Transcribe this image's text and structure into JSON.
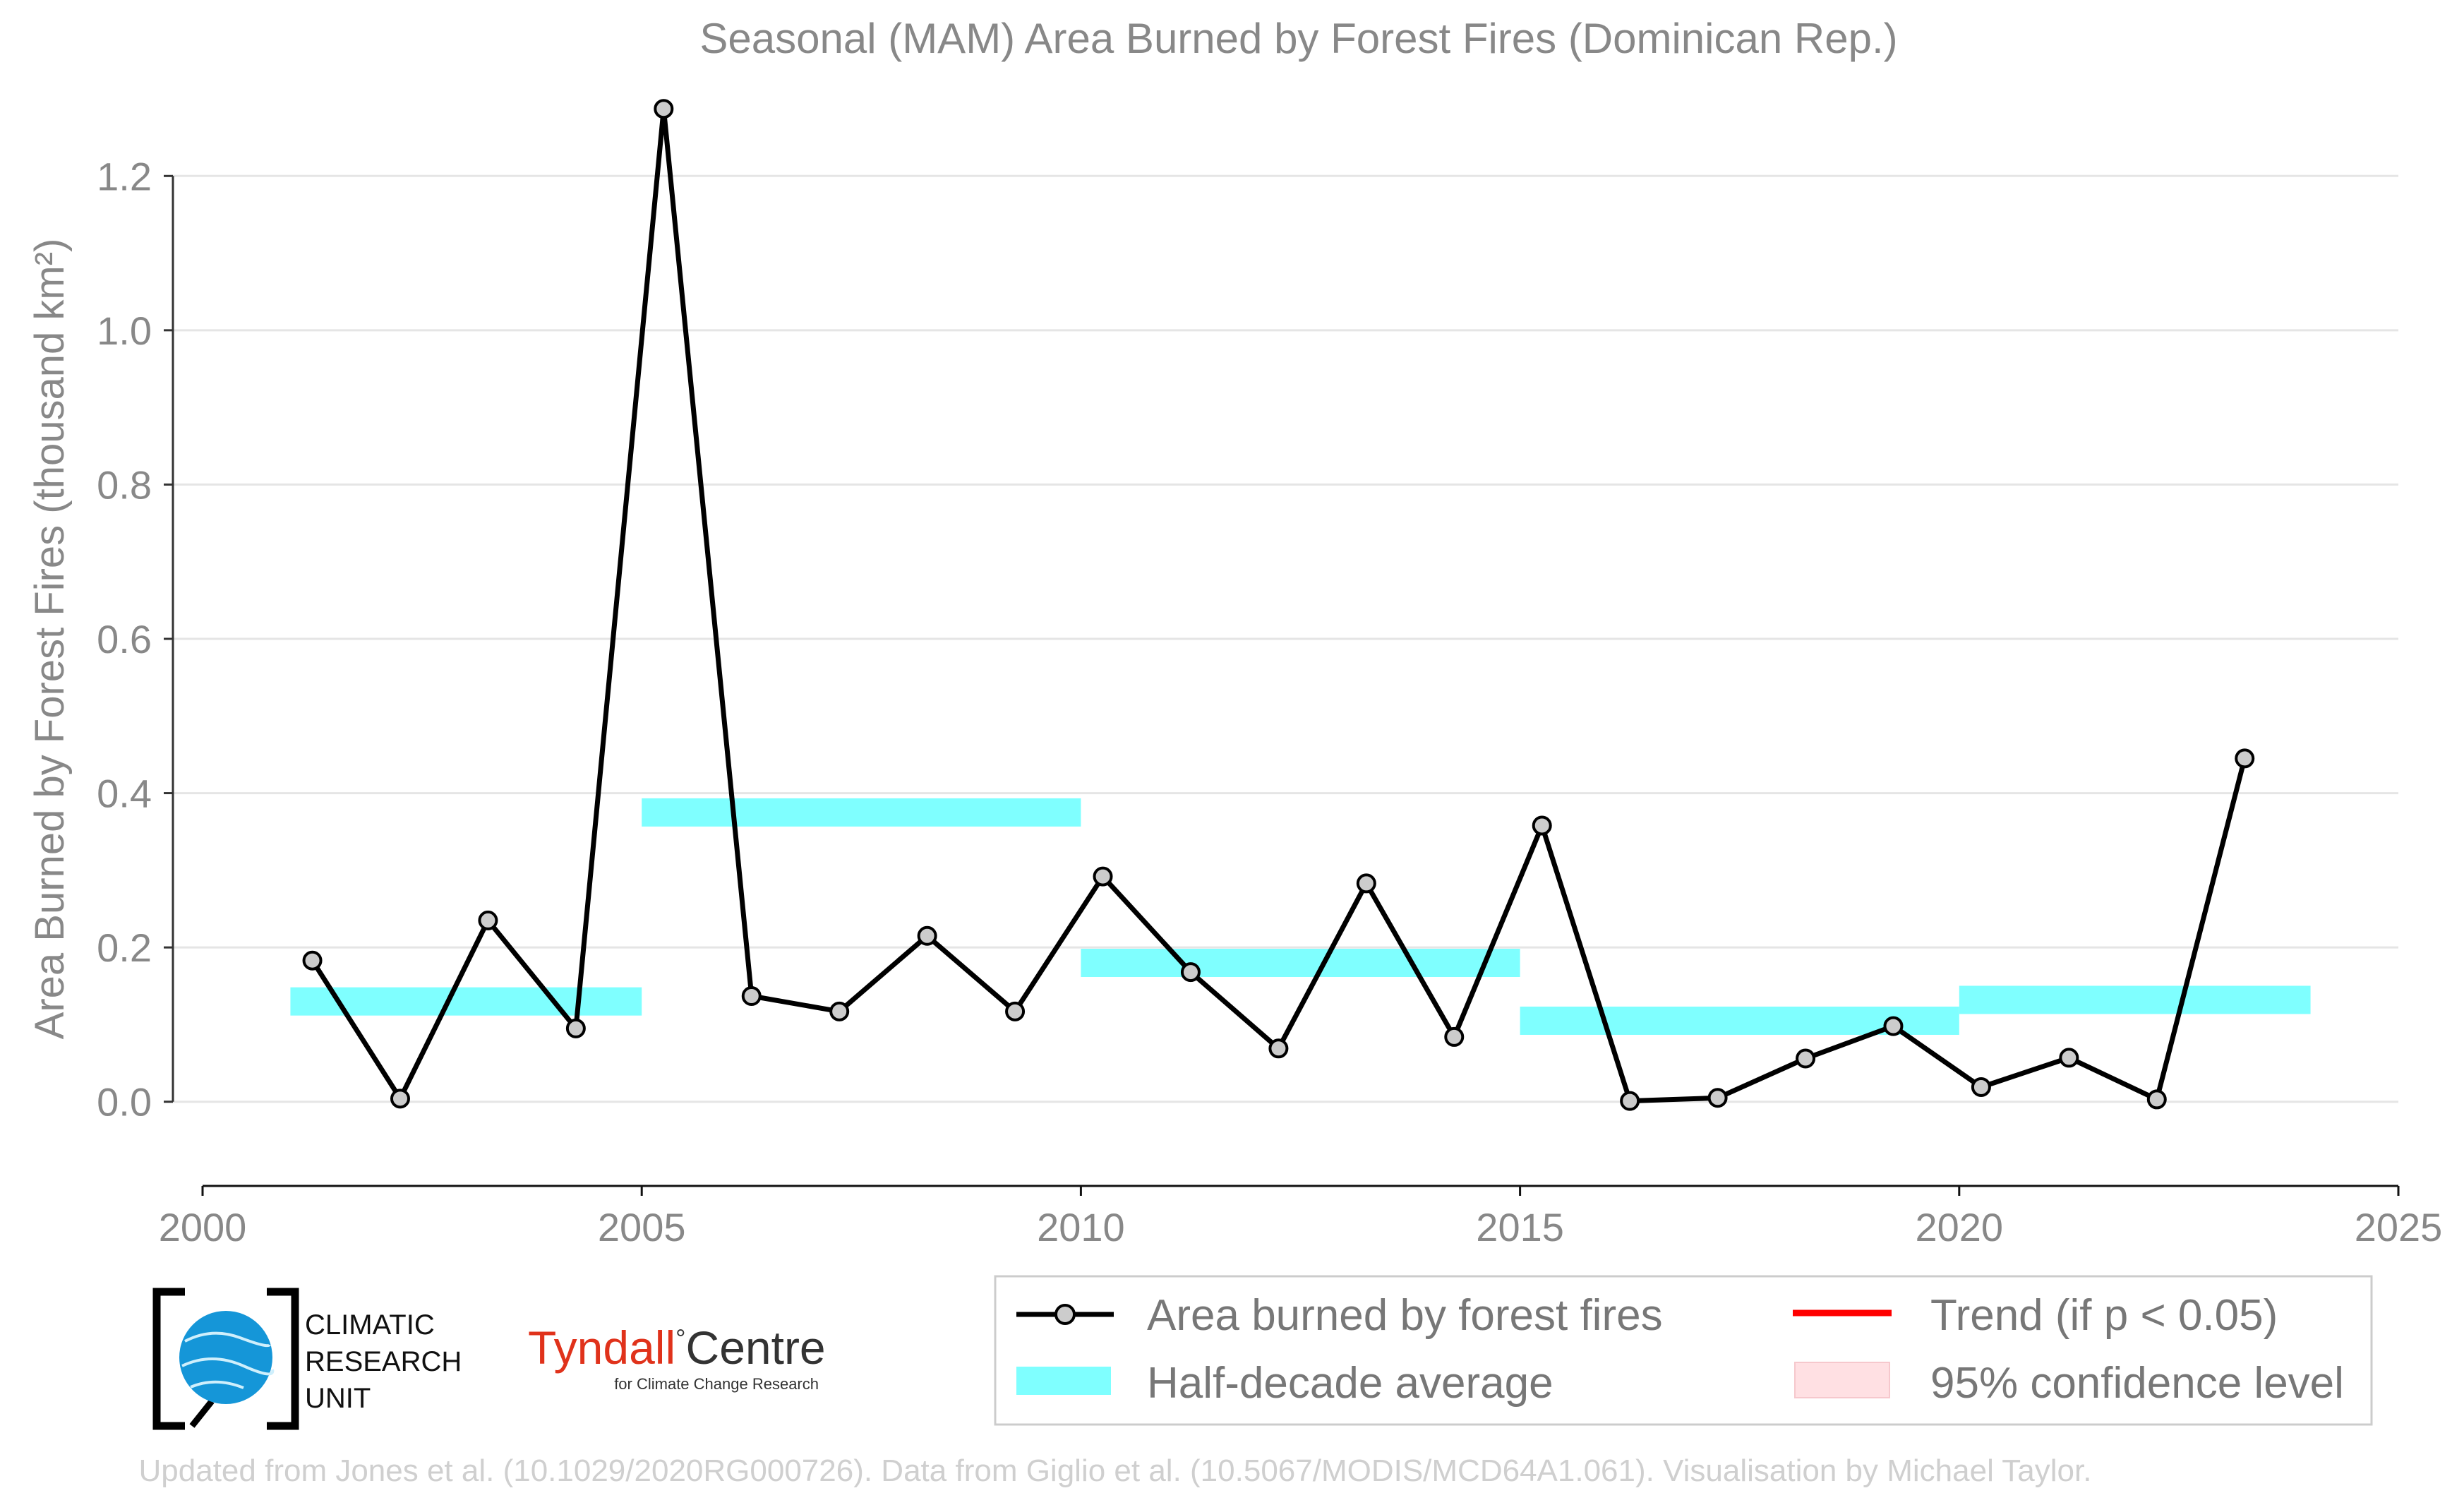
{
  "chart_data": {
    "type": "line",
    "title": "Seasonal (MAM) Area Burned by Forest Fires (Dominican Rep.)",
    "xlabel": "",
    "ylabel": "Area Burned by Forest Fires (thousand km²)",
    "xlim": [
      2000,
      2025
    ],
    "ylim": [
      -0.1,
      1.3
    ],
    "x_ticks": [
      "2000",
      "2005",
      "2010",
      "2015",
      "2020",
      "2025"
    ],
    "y_ticks": [
      "0.0",
      "0.2",
      "0.4",
      "0.6",
      "0.8",
      "1.0",
      "1.2"
    ],
    "grid": "horizontal",
    "series": [
      {
        "name": "Area burned by forest fires",
        "color": "#000000",
        "marker_color": "#cccccc",
        "x": [
          2001.25,
          2002.25,
          2003.25,
          2004.25,
          2005.25,
          2006.25,
          2007.25,
          2008.25,
          2009.25,
          2010.25,
          2011.25,
          2012.25,
          2013.25,
          2014.25,
          2015.25,
          2016.25,
          2017.25,
          2018.25,
          2019.25,
          2020.25,
          2021.25,
          2022.25,
          2023.25
        ],
        "y": [
          0.183,
          0.004,
          0.235,
          0.095,
          1.287,
          0.137,
          0.117,
          0.215,
          0.117,
          0.292,
          0.168,
          0.069,
          0.283,
          0.084,
          0.358,
          0.001,
          0.005,
          0.056,
          0.098,
          0.019,
          0.057,
          0.003,
          0.445
        ]
      }
    ],
    "half_decade_average": {
      "name": "Half-decade average",
      "color": "#7fffff",
      "segments": [
        {
          "x0": 2001,
          "x1": 2005,
          "y": 0.13
        },
        {
          "x0": 2005,
          "x1": 2010,
          "y": 0.375
        },
        {
          "x0": 2010,
          "x1": 2015,
          "y": 0.18
        },
        {
          "x0": 2015,
          "x1": 2020,
          "y": 0.105
        },
        {
          "x0": 2020,
          "x1": 2024,
          "y": 0.132
        }
      ]
    },
    "legend": {
      "placement": "bottom-right",
      "items": [
        {
          "label": "Area burned by forest fires",
          "kind": "line-marker",
          "color": "#000000"
        },
        {
          "label": "Trend (if p < 0.05)",
          "kind": "line",
          "color": "#ff0000"
        },
        {
          "label": "Half-decade average",
          "kind": "patch",
          "color": "#7fffff"
        },
        {
          "label": "95% confidence level",
          "kind": "patch",
          "color": "#ffe0e3"
        }
      ]
    }
  },
  "logos": {
    "cru": {
      "lines": [
        "CLIMATIC",
        "RESEARCH",
        "UNIT"
      ]
    },
    "tyndall": {
      "name_left": "Tyndall",
      "degree": "°",
      "name_right": "Centre",
      "tagline": "for Climate Change Research"
    }
  },
  "credit": "Updated from Jones et al. (10.1029/2020RG000726). Data from Giglio et al. (10.5067/MODIS/MCD64A1.061). Visualisation by Michael Taylor."
}
